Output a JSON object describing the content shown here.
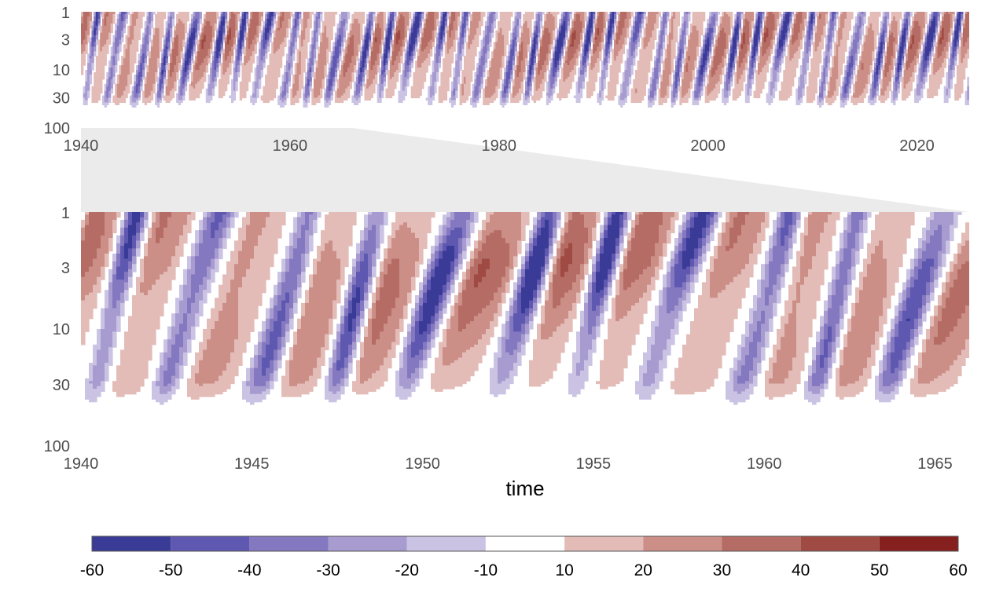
{
  "chart_data": [
    {
      "type": "heatmap",
      "panel": "overview",
      "xlabel": "",
      "ylabel": "",
      "xlim": [
        1940,
        2025
      ],
      "ylim": [
        100,
        1
      ],
      "y_scale": "log",
      "x_ticks": [
        1940,
        1960,
        1980,
        2000,
        2020
      ],
      "y_ticks": [
        1,
        3,
        10,
        30,
        100
      ],
      "grid": false,
      "zoom_range": [
        1940,
        1966
      ]
    },
    {
      "type": "heatmap",
      "panel": "zoom",
      "xlabel": "time",
      "ylabel": "",
      "xlim": [
        1940,
        1966
      ],
      "ylim": [
        100,
        1
      ],
      "y_scale": "log",
      "x_ticks": [
        1940,
        1945,
        1950,
        1955,
        1960,
        1965
      ],
      "y_ticks": [
        1,
        3,
        10,
        30,
        100
      ],
      "grid": false
    }
  ],
  "colorbar": {
    "ticks": [
      "-60",
      "-50",
      "-40",
      "-30",
      "-20",
      "-10",
      "10",
      "20",
      "30",
      "40",
      "50",
      "60"
    ],
    "bins": [
      {
        "from": -60,
        "to": -50,
        "color": "#3a3a97"
      },
      {
        "from": -50,
        "to": -40,
        "color": "#5e58b0"
      },
      {
        "from": -40,
        "to": -30,
        "color": "#8478c0"
      },
      {
        "from": -30,
        "to": -20,
        "color": "#a79bd0"
      },
      {
        "from": -20,
        "to": -10,
        "color": "#cbc3e3"
      },
      {
        "from": -10,
        "to": 10,
        "color": "#ffffff"
      },
      {
        "from": 10,
        "to": 20,
        "color": "#e3bcb8"
      },
      {
        "from": 20,
        "to": 30,
        "color": "#cc8f87"
      },
      {
        "from": 30,
        "to": 40,
        "color": "#b56c64"
      },
      {
        "from": 40,
        "to": 50,
        "color": "#a04a44"
      },
      {
        "from": 50,
        "to": 60,
        "color": "#85201f"
      }
    ]
  }
}
